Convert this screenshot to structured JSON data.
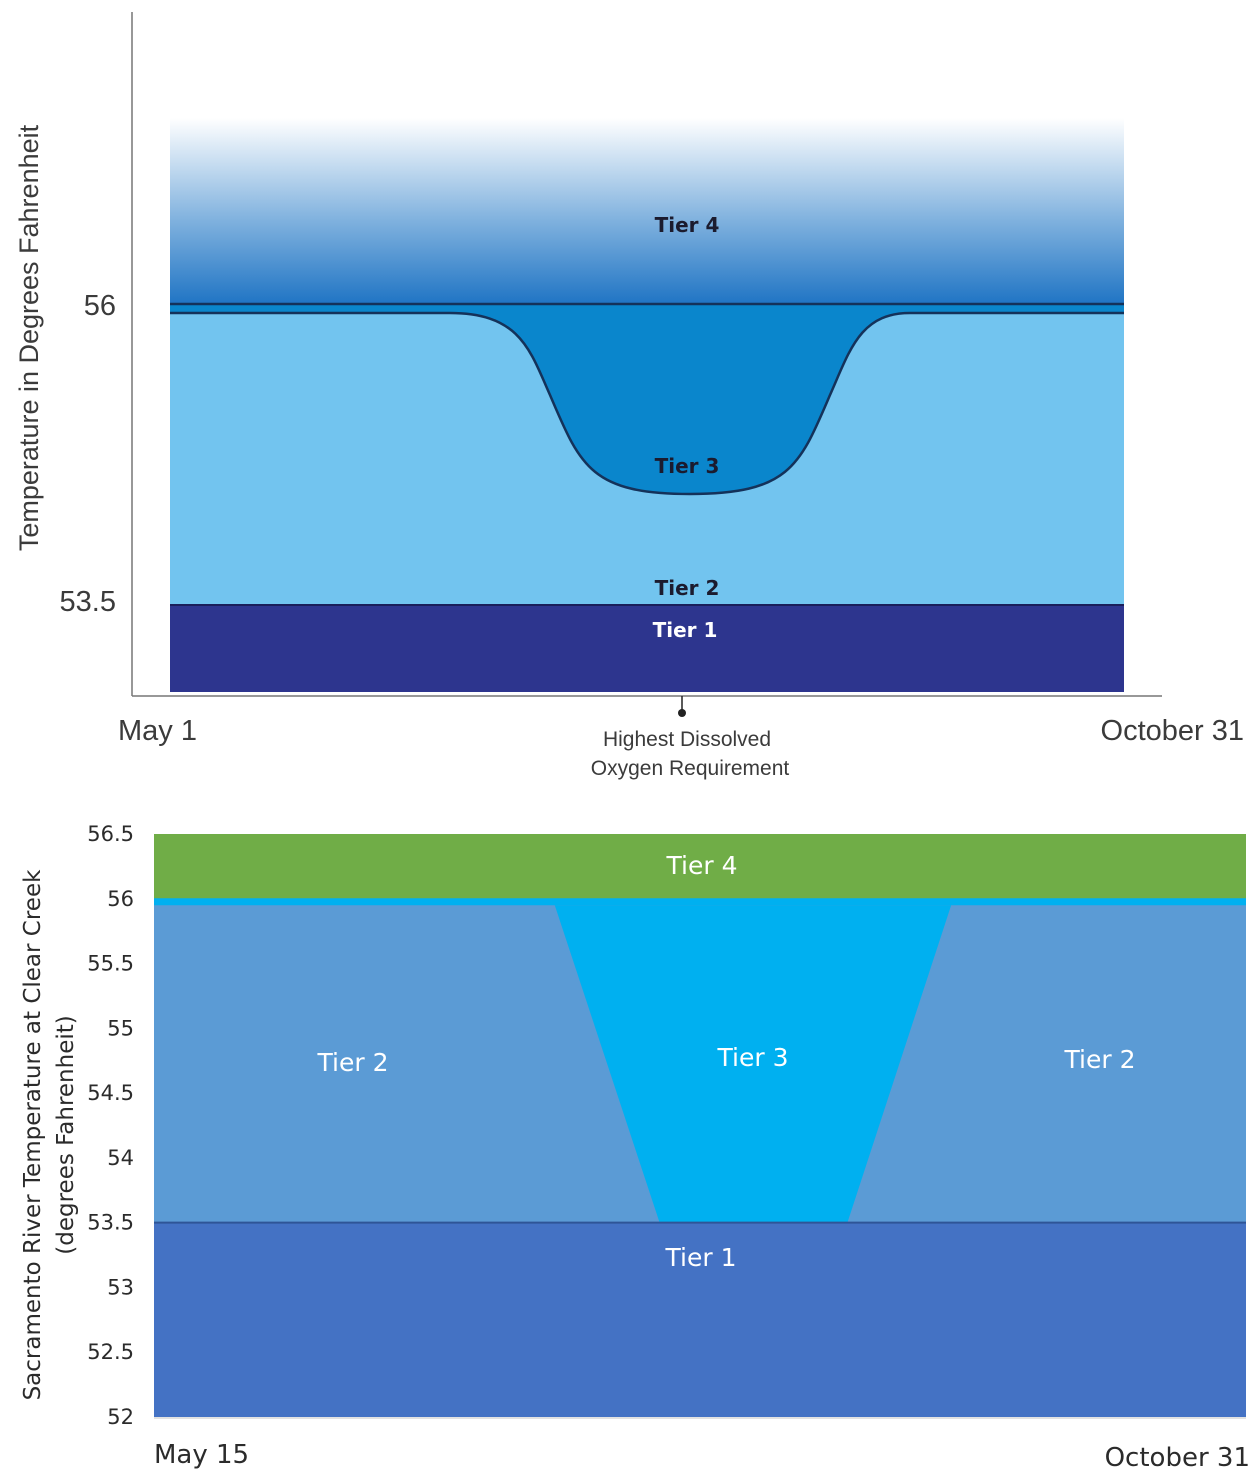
{
  "chart_data": [
    {
      "type": "area",
      "ylabel": "Temperature in Degrees Fahrenheit",
      "yticks": [
        "56",
        "53.5"
      ],
      "xticks": [
        "May 1",
        "October 31"
      ],
      "annotation": {
        "line1": "Highest Dissolved",
        "line2": "Oxygen Requirement"
      },
      "bands": [
        {
          "name": "Tier 4",
          "label": "Tier 4",
          "from": 56,
          "color": "#2f7fcc",
          "gradient": true
        },
        {
          "name": "Tier 3",
          "label": "Tier 3",
          "from": 54.9,
          "to": 56,
          "color": "#0a86cc",
          "shape": "curved-dip"
        },
        {
          "name": "Tier 2",
          "label": "Tier 2",
          "from": 53.5,
          "to": 56,
          "color": "#72c4ef"
        },
        {
          "name": "Tier 1",
          "label": "Tier 1",
          "to": 53.5,
          "color": "#2d358e"
        }
      ],
      "tier3_boundary": [
        {
          "x": 0.0,
          "y": 55.95
        },
        {
          "x": 0.3,
          "y": 55.95
        },
        {
          "x": 0.4,
          "y": 55.5
        },
        {
          "x": 0.5,
          "y": 54.8
        },
        {
          "x": 0.6,
          "y": 55.5
        },
        {
          "x": 0.7,
          "y": 55.95
        },
        {
          "x": 1.0,
          "y": 55.95
        }
      ],
      "threshold_line": 56,
      "lower_line": 53.5
    },
    {
      "type": "area",
      "ylabel_line1": "Sacramento River Temperature at Clear Creek",
      "ylabel_line2": "(degrees Fahrenheit)",
      "ylim": [
        52,
        56.5
      ],
      "yticks": [
        "56.5",
        "56",
        "55.5",
        "55",
        "54.5",
        "54",
        "53.5",
        "53",
        "52.5",
        "52"
      ],
      "ytick_values": [
        56.5,
        56,
        55.5,
        55,
        54.5,
        54,
        53.5,
        53,
        52.5,
        52
      ],
      "xticks": [
        "May 15",
        "October 31"
      ],
      "bands": [
        {
          "name": "Tier 4",
          "label": "Tier 4",
          "from": 56,
          "to": 56.5,
          "color": "#70ad47"
        },
        {
          "name": "Tier 3",
          "label": "Tier 3",
          "color": "#00b0f0",
          "polygon": [
            {
              "x": 0.367,
              "y": 55.95
            },
            {
              "x": 0.73,
              "y": 55.95
            },
            {
              "x": 0.635,
              "y": 53.5
            },
            {
              "x": 0.463,
              "y": 53.5
            }
          ]
        },
        {
          "name": "Tier 2",
          "label_left": "Tier 2",
          "label_right": "Tier 2",
          "from": 53.5,
          "to": 55.95,
          "color": "#5b9bd5"
        },
        {
          "name": "Tier 1",
          "label": "Tier 1",
          "from": 52,
          "to": 53.5,
          "color": "#4472c4"
        }
      ],
      "separator_line": {
        "y": 56,
        "color": "#00b0f0"
      }
    }
  ]
}
